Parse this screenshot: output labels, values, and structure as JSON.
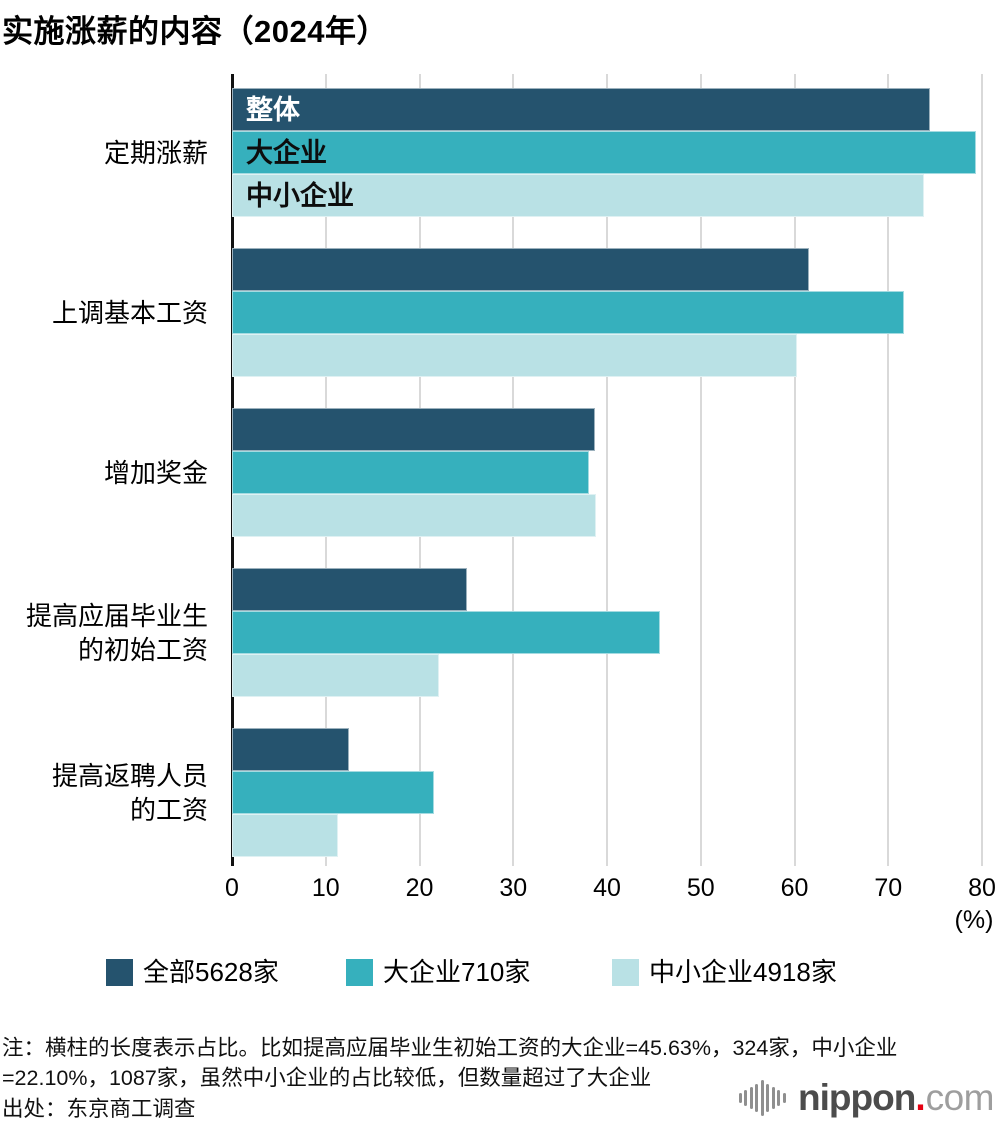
{
  "title": "实施涨薪的内容（2024年）",
  "chart_data": {
    "type": "bar",
    "orientation": "horizontal",
    "title": "实施涨薪的内容（2024年）",
    "xlim": [
      0,
      80
    ],
    "xticks": [
      0,
      10,
      20,
      30,
      40,
      50,
      60,
      70,
      80
    ],
    "x_unit_label": "(%)",
    "grid": true,
    "legend_position": "bottom",
    "categories": [
      "定期涨薪",
      "上调基本工资",
      "增加奖金",
      "提高应届毕业生\n的初始工资",
      "提高返聘人员\n的工资"
    ],
    "series": [
      {
        "name": "整体",
        "legend_label": "全部5628家",
        "color": "#25536e",
        "in_bar_label_color": "#ffffff",
        "values": [
          74.5,
          61.5,
          38.7,
          25.1,
          12.5
        ]
      },
      {
        "name": "大企业",
        "legend_label": "大企业710家",
        "color": "#36b0bd",
        "in_bar_label_color": "#0d0d0d",
        "values": [
          79.4,
          71.7,
          38.1,
          45.63,
          21.5
        ]
      },
      {
        "name": "中小企业",
        "legend_label": "中小企业4918家",
        "color": "#b9e1e5",
        "in_bar_label_color": "#0d0d0d",
        "values": [
          73.8,
          60.3,
          38.8,
          22.1,
          11.3
        ]
      }
    ],
    "first_group_bar_labels": [
      "整体",
      "大企业",
      "中小企业"
    ]
  },
  "legend": {
    "items": [
      {
        "label": "全部5628家",
        "color": "#25536e"
      },
      {
        "label": "大企业710家",
        "color": "#36b0bd"
      },
      {
        "label": "中小企业4918家",
        "color": "#b9e1e5"
      }
    ]
  },
  "footer": {
    "note_line1": "注：横柱的长度表示占比。比如提高应届毕业生初始工资的大企业=45.63%，324家，中小企业",
    "note_line2": "=22.10%，1087家，虽然中小企业的占比较低，但数量超过了大企业",
    "source": "出处：东京商工调查"
  },
  "logo": {
    "text_main": "nippon",
    "text_dot": ".",
    "text_suffix": "com",
    "dot_color": "#e60012",
    "wave_color": "#8f8f8f"
  }
}
